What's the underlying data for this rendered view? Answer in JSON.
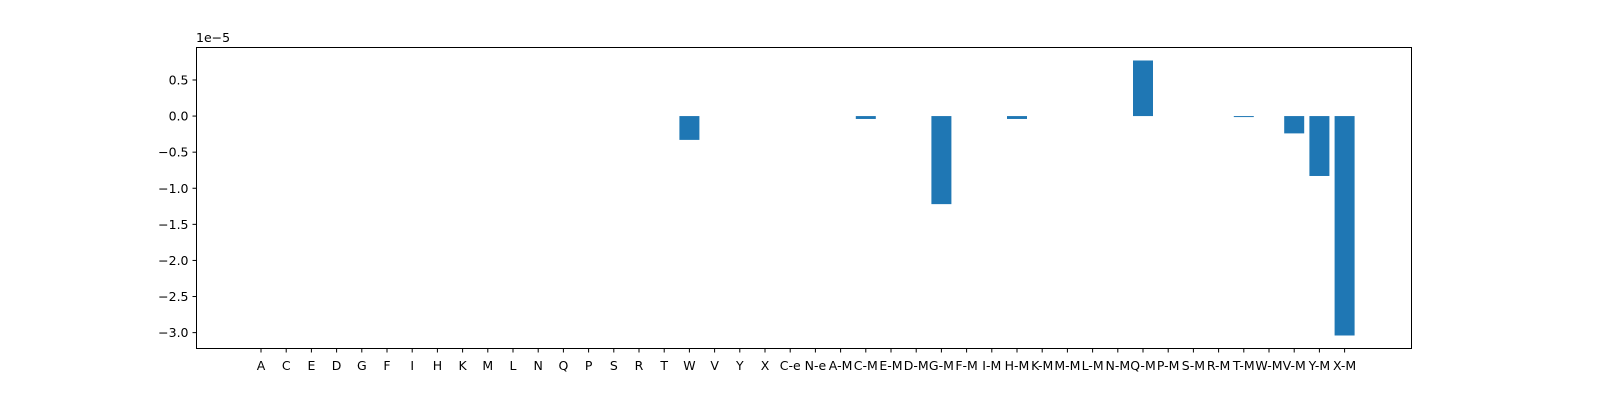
{
  "chart_data": {
    "type": "bar",
    "title": "",
    "xlabel": "",
    "ylabel": "",
    "offset_label": "1e−5",
    "ylim": [
      -3.22,
      0.95
    ],
    "yticks": [
      0.5,
      0.0,
      -0.5,
      -1.0,
      -1.5,
      -2.0,
      -2.5,
      -3.0
    ],
    "ytick_labels": [
      "0.5",
      "0.0",
      "−0.5",
      "−1.0",
      "−1.5",
      "−2.0",
      "−2.5",
      "−3.0"
    ],
    "grid": false,
    "bar_color": "#1f77b4",
    "categories": [
      "A",
      "C",
      "E",
      "D",
      "G",
      "F",
      "I",
      "H",
      "K",
      "M",
      "L",
      "N",
      "Q",
      "P",
      "S",
      "R",
      "T",
      "W",
      "V",
      "Y",
      "X",
      "C-e",
      "N-e",
      "A-M",
      "C-M",
      "E-M",
      "D-M",
      "G-M",
      "F-M",
      "I-M",
      "H-M",
      "K-M",
      "M-M",
      "L-M",
      "N-M",
      "Q-M",
      "P-M",
      "S-M",
      "R-M",
      "T-M",
      "W-M",
      "V-M",
      "Y-M",
      "X-M"
    ],
    "values": [
      0,
      0,
      0,
      0,
      0,
      0,
      0,
      0,
      0,
      0,
      0,
      0,
      0,
      0,
      0,
      0,
      0,
      -0.33,
      0,
      0,
      0,
      0,
      0,
      0,
      -0.04,
      0,
      0,
      -1.22,
      0,
      0,
      -0.04,
      0,
      0,
      0,
      0,
      0.77,
      0,
      0,
      0,
      -0.01,
      0,
      -0.24,
      -0.83,
      -3.04
    ]
  }
}
